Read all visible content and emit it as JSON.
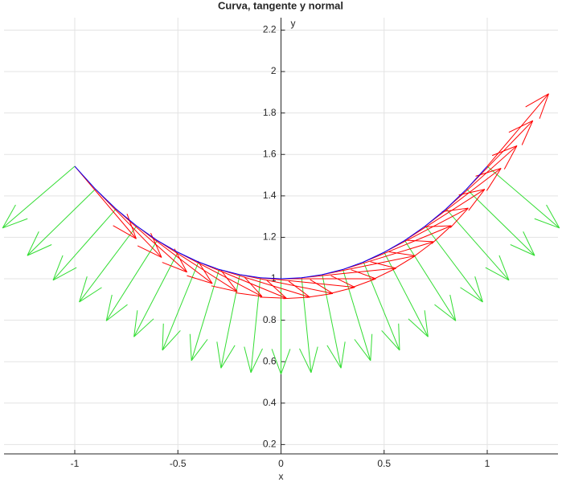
{
  "chart_data": {
    "type": "quiver",
    "title": "Curva, tangente y normal",
    "x_label": "x",
    "y_label": "y",
    "xlim": [
      -1.343,
      1.343
    ],
    "ylim": [
      0.155,
      2.26
    ],
    "xticks": [
      -1,
      -0.5,
      0,
      0.5,
      1
    ],
    "yticks": [
      0.2,
      0.4,
      0.6,
      0.8,
      1,
      1.2,
      1.4,
      1.6,
      1.8,
      2,
      2.2
    ],
    "grid": true,
    "curve": {
      "color": "#0000ff",
      "x": [
        -1,
        -0.9,
        -0.8,
        -0.7,
        -0.6,
        -0.5,
        -0.4,
        -0.3,
        -0.2,
        -0.1,
        0,
        0.1,
        0.2,
        0.3,
        0.4,
        0.5,
        0.6,
        0.7,
        0.8,
        0.9,
        1
      ],
      "y": [
        1.543,
        1.433,
        1.337,
        1.255,
        1.185,
        1.128,
        1.081,
        1.045,
        1.02,
        1.005,
        1,
        1.005,
        1.02,
        1.045,
        1.081,
        1.128,
        1.185,
        1.255,
        1.337,
        1.433,
        1.543
      ]
    },
    "tangents": {
      "color": "#ff0000",
      "u": [
        0.298,
        0.321,
        0.344,
        0.367,
        0.388,
        0.408,
        0.426,
        0.44,
        0.451,
        0.458,
        0.46,
        0.458,
        0.451,
        0.44,
        0.426,
        0.408,
        0.388,
        0.367,
        0.344,
        0.321,
        0.298
      ],
      "v": [
        -0.35,
        -0.33,
        -0.305,
        -0.278,
        -0.247,
        -0.213,
        -0.175,
        -0.134,
        -0.091,
        -0.046,
        0,
        0.046,
        0.091,
        0.134,
        0.175,
        0.213,
        0.247,
        0.278,
        0.305,
        0.33,
        0.35
      ]
    },
    "normals": {
      "color": "#33dd33",
      "u": [
        -0.35,
        -0.33,
        -0.305,
        -0.278,
        -0.247,
        -0.213,
        -0.175,
        -0.134,
        -0.091,
        -0.046,
        0,
        0.046,
        0.091,
        0.134,
        0.175,
        0.213,
        0.247,
        0.278,
        0.305,
        0.33,
        0.35
      ],
      "v": [
        -0.298,
        -0.321,
        -0.344,
        -0.367,
        -0.388,
        -0.408,
        -0.426,
        -0.44,
        -0.451,
        -0.458,
        -0.46,
        -0.458,
        -0.451,
        -0.44,
        -0.426,
        -0.408,
        -0.388,
        -0.367,
        -0.344,
        -0.321,
        -0.298
      ]
    }
  }
}
